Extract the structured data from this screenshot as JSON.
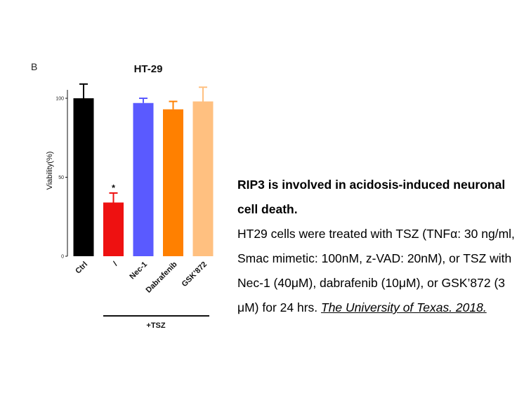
{
  "panel_label": "B",
  "caption": {
    "heading": "RIP3 is involved in acidosis-induced neuronal cell death.",
    "body": "HT29 cells were treated with TSZ (TNFα: 30 ng/ml, Smac mimetic: 100nM, z-VAD: 20nM), or TSZ with Nec-1 (40μM), dabrafenib (10μM), or GSK’872 (3 μM) for 24 hrs. ",
    "citation": "The University of Texas. 2018."
  },
  "chart_data": {
    "type": "bar",
    "title": "HT-29",
    "ylabel": "Viability(%)",
    "xlabel": "",
    "ylim": [
      0,
      100
    ],
    "yticks": [
      0,
      50,
      100
    ],
    "categories": [
      "Ctrl",
      "/",
      "Nec-1",
      "Dabrafenib",
      "GSK’872"
    ],
    "values": [
      100,
      34,
      97,
      93,
      98
    ],
    "errors": [
      9,
      6,
      3,
      5,
      9
    ],
    "colors": [
      "#000000",
      "#ee1111",
      "#5a5aff",
      "#ff8000",
      "#ffc080"
    ],
    "significance": [
      "",
      "*",
      "",
      "",
      ""
    ],
    "group_label": "+TSZ"
  }
}
